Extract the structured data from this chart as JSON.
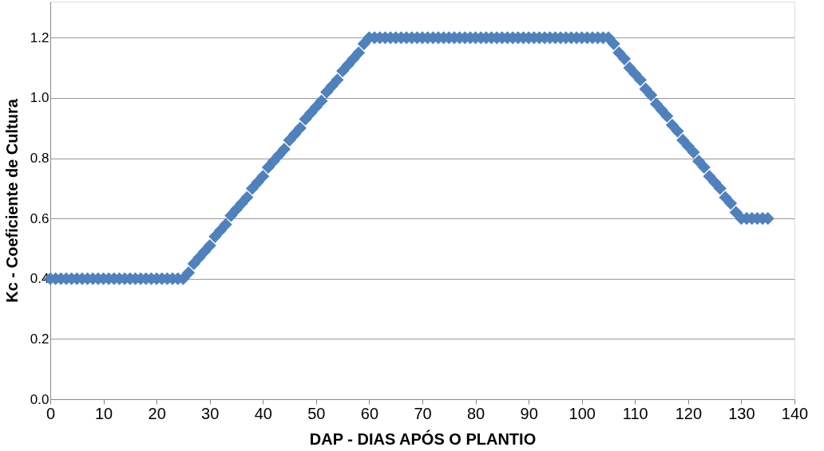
{
  "chart_data": {
    "type": "scatter",
    "xlabel": "DAP - DIAS APÓS O PLANTIO",
    "ylabel": "Kc - Coeficiente de Cultura",
    "x": [
      0,
      1,
      2,
      3,
      4,
      5,
      6,
      7,
      8,
      9,
      10,
      11,
      12,
      13,
      14,
      15,
      16,
      17,
      18,
      19,
      20,
      21,
      22,
      23,
      24,
      25,
      26,
      27,
      28,
      29,
      30,
      31,
      32,
      33,
      34,
      35,
      36,
      37,
      38,
      39,
      40,
      41,
      42,
      43,
      44,
      45,
      46,
      47,
      48,
      49,
      50,
      51,
      52,
      53,
      54,
      55,
      56,
      57,
      58,
      59,
      60,
      61,
      62,
      63,
      64,
      65,
      66,
      67,
      68,
      69,
      70,
      71,
      72,
      73,
      74,
      75,
      76,
      77,
      78,
      79,
      80,
      81,
      82,
      83,
      84,
      85,
      86,
      87,
      88,
      89,
      90,
      91,
      92,
      93,
      94,
      95,
      96,
      97,
      98,
      99,
      100,
      101,
      102,
      103,
      104,
      105,
      106,
      107,
      108,
      109,
      110,
      111,
      112,
      113,
      114,
      115,
      116,
      117,
      118,
      119,
      120,
      121,
      122,
      123,
      124,
      125,
      126,
      127,
      128,
      129,
      130,
      131,
      132,
      133,
      134,
      135
    ],
    "series": [
      {
        "color": "#4f81bd",
        "values": [
          0.4,
          0.4,
          0.4,
          0.4,
          0.4,
          0.4,
          0.4,
          0.4,
          0.4,
          0.4,
          0.4,
          0.4,
          0.4,
          0.4,
          0.4,
          0.4,
          0.4,
          0.4,
          0.4,
          0.4,
          0.4,
          0.4,
          0.4,
          0.4,
          0.4,
          0.4,
          0.42,
          0.45,
          0.47,
          0.49,
          0.51,
          0.54,
          0.56,
          0.58,
          0.61,
          0.63,
          0.65,
          0.67,
          0.7,
          0.72,
          0.74,
          0.77,
          0.79,
          0.81,
          0.83,
          0.86,
          0.88,
          0.9,
          0.93,
          0.95,
          0.97,
          0.99,
          1.02,
          1.04,
          1.06,
          1.09,
          1.11,
          1.13,
          1.15,
          1.18,
          1.2,
          1.2,
          1.2,
          1.2,
          1.2,
          1.2,
          1.2,
          1.2,
          1.2,
          1.2,
          1.2,
          1.2,
          1.2,
          1.2,
          1.2,
          1.2,
          1.2,
          1.2,
          1.2,
          1.2,
          1.2,
          1.2,
          1.2,
          1.2,
          1.2,
          1.2,
          1.2,
          1.2,
          1.2,
          1.2,
          1.2,
          1.2,
          1.2,
          1.2,
          1.2,
          1.2,
          1.2,
          1.2,
          1.2,
          1.2,
          1.2,
          1.2,
          1.2,
          1.2,
          1.2,
          1.2,
          1.18,
          1.15,
          1.13,
          1.1,
          1.08,
          1.06,
          1.03,
          1.01,
          0.98,
          0.96,
          0.94,
          0.91,
          0.89,
          0.86,
          0.84,
          0.82,
          0.79,
          0.77,
          0.74,
          0.72,
          0.7,
          0.67,
          0.65,
          0.62,
          0.6,
          0.6,
          0.6,
          0.6,
          0.6,
          0.6
        ]
      }
    ],
    "xlim": [
      0,
      140
    ],
    "xticks": [
      0,
      10,
      20,
      30,
      40,
      50,
      60,
      70,
      80,
      90,
      100,
      110,
      120,
      130,
      140
    ],
    "ylim": [
      0,
      1.32
    ],
    "yticks": [
      {
        "value": 0,
        "label": "0.0"
      },
      0.2,
      0.4,
      0.6,
      0.8,
      {
        "value": 1,
        "label": "1.0"
      },
      1.2
    ],
    "grid": "y",
    "marker": "diamond"
  }
}
